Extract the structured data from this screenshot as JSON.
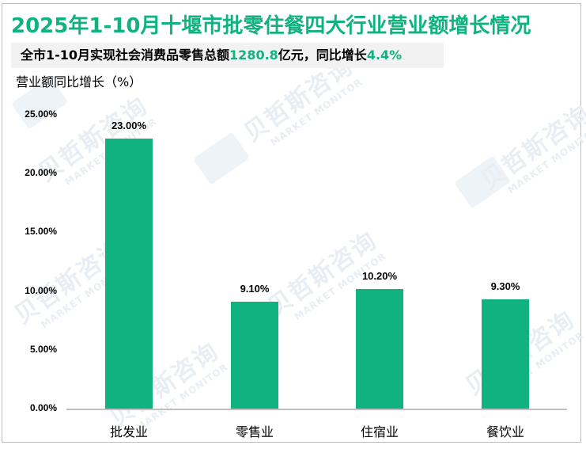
{
  "title": "2025年1-10月十堰市批零住餐四大行业营业额增长情况",
  "subtitle": {
    "prefix": "全市1-10月实现社会消费品零售总额",
    "value1": "1280.8",
    "middle": "亿元，同比增长",
    "value2": "4.4%"
  },
  "watermark": {
    "cn": "贝哲斯咨询",
    "en": "MARKET MONITOR"
  },
  "colors": {
    "accent": "#10b37f",
    "bar": "#10b37f",
    "axis": "#bfbfbf",
    "subtitle_bg": "#f2f2f2"
  },
  "chart_data": {
    "type": "bar",
    "title": "2025年1-10月十堰市批零住餐四大行业营业额增长情况",
    "subtitle": "全市1-10月实现社会消费品零售总额1280.8亿元，同比增长4.4%",
    "xlabel": "",
    "ylabel": "营业额同比增长（%）",
    "categories": [
      "批发业",
      "零售业",
      "住宿业",
      "餐饮业"
    ],
    "values": [
      23.0,
      9.1,
      10.2,
      9.3
    ],
    "value_labels": [
      "23.00%",
      "9.10%",
      "10.20%",
      "9.30%"
    ],
    "yticks": [
      "25.00%",
      "20.00%",
      "15.00%",
      "10.00%",
      "5.00%",
      "0.00%"
    ],
    "ylim": [
      0,
      25
    ],
    "grid": false,
    "legend": "none"
  }
}
